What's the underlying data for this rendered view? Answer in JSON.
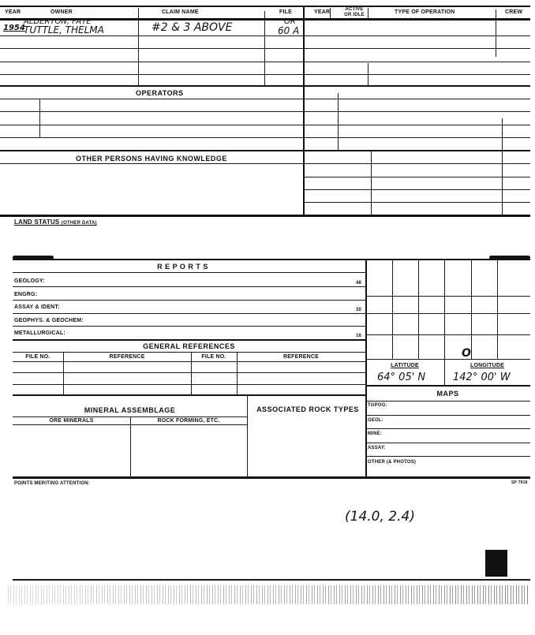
{
  "claims": {
    "headers": [
      "YEAR",
      "OWNER",
      "CLAIM NAME",
      "FILE",
      "YEAR",
      "ACTIVE OR IDLE",
      "TYPE OF OPERATION",
      "CREW"
    ],
    "entry": {
      "year": "1954",
      "owner_line1": "ALDERTON, FAYE",
      "owner_line2": "TUTTLE, THELMA",
      "claim_name": "#2 & 3 ABOVE",
      "file_line1": "OR",
      "file_line2": "60 A"
    }
  },
  "operators": {
    "title": "OPERATORS"
  },
  "other_persons": {
    "title": "OTHER PERSONS HAVING KNOWLEDGE"
  },
  "land_status": {
    "label": "LAND STATUS",
    "sub": "(OTHER DATA)"
  },
  "reports": {
    "title": "R E P O R T S",
    "rows": [
      {
        "label": "GEOLOGY:",
        "num": "48"
      },
      {
        "label": "ENGRG:",
        "num": ""
      },
      {
        "label": "ASSAY & IDENT:",
        "num": "30"
      },
      {
        "label": "GEOPHYS. & GEOCHEM:",
        "num": ""
      },
      {
        "label": "METALLURGICAL:",
        "num": "16"
      }
    ]
  },
  "general_references": {
    "title": "GENERAL REFERENCES",
    "headers": [
      "FILE NO.",
      "REFERENCE",
      "FILE NO.",
      "REFERENCE"
    ]
  },
  "mineral_assemblage": {
    "title": "MINERAL ASSEMBLAGE",
    "ore": "ORE MINERALS",
    "rock": "ROCK FORMING, ETC.",
    "associated": "ASSOCIATED ROCK TYPES"
  },
  "location": {
    "latitude_label": "LATITUDE",
    "longitude_label": "LONGITUDE",
    "latitude": "64° 05' N",
    "longitude": "142° 00' W",
    "grid_mark": "O"
  },
  "maps": {
    "title": "MAPS",
    "rows": [
      "TOPOG:",
      "GEOL:",
      "MINE:",
      "ASSAY:",
      "OTHER (& PHOTOS)"
    ]
  },
  "footer": {
    "points": "POINTS MERITING ATTENTION:",
    "form_no": "SP 7918",
    "coords": "(14.0, 2.4)"
  }
}
